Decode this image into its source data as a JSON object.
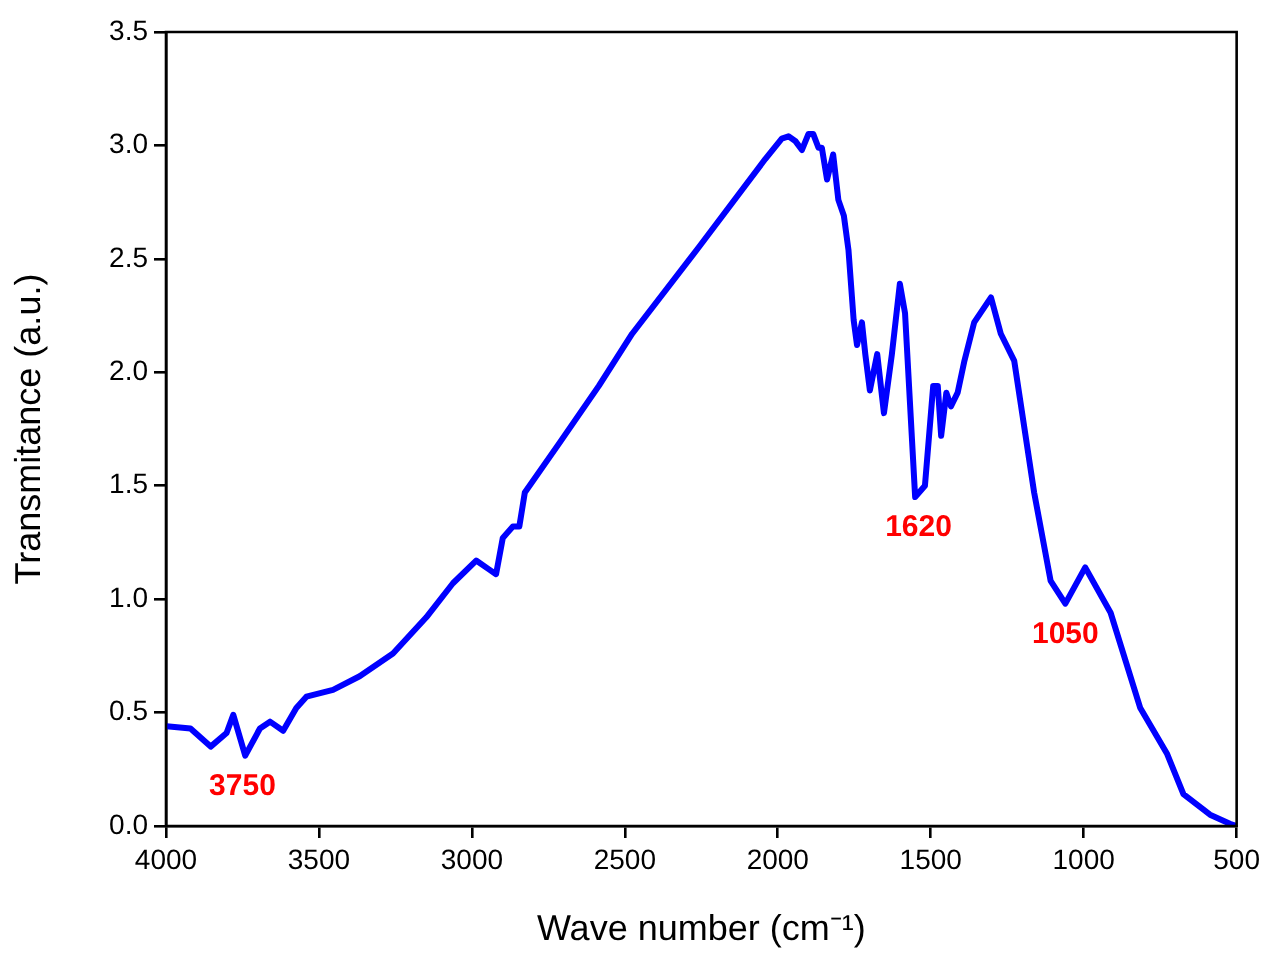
{
  "chart_data": {
    "type": "line",
    "xlabel": "Wave number (cm⁻¹)",
    "ylabel": "Transmitance (a.u.)",
    "xlim": [
      4000,
      500
    ],
    "xticks": [
      4000,
      3500,
      3000,
      2500,
      2000,
      1500,
      1000,
      500
    ],
    "ylim": [
      0,
      3.5
    ],
    "yticks": [
      {
        "value": 0,
        "label": "0.0"
      },
      0.5,
      {
        "value": 1,
        "label": "1.0"
      },
      1.5,
      {
        "value": 2,
        "label": "2.0"
      },
      2.5,
      {
        "value": 3,
        "label": "3.0"
      },
      3.5
    ],
    "grid": false,
    "legend": false,
    "marker": "none",
    "line_style": "solid",
    "series": [
      {
        "color": "#0000ff",
        "x": [
          3998,
          3920,
          3854,
          3802,
          3780,
          3741,
          3693,
          3660,
          3617,
          3574,
          3541,
          3454,
          3367,
          3258,
          3149,
          3062,
          2986,
          2943,
          2921,
          2899,
          2866,
          2845,
          2827,
          2713,
          2585,
          2476,
          2259,
          2041,
          1987,
          1965,
          1943,
          1921,
          1900,
          1884,
          1867,
          1856,
          1839,
          1819,
          1802,
          1784,
          1769,
          1752,
          1741,
          1725,
          1714,
          1699,
          1675,
          1653,
          1627,
          1601,
          1584,
          1551,
          1519,
          1492,
          1477,
          1466,
          1449,
          1434,
          1412,
          1390,
          1358,
          1303,
          1271,
          1227,
          1162,
          1108,
          1060,
          995,
          912,
          815,
          728,
          674,
          587,
          522,
          500
        ],
        "values": [
          0.44,
          0.43,
          0.35,
          0.41,
          0.49,
          0.31,
          0.43,
          0.46,
          0.42,
          0.52,
          0.57,
          0.6,
          0.66,
          0.76,
          0.92,
          1.07,
          1.17,
          1.13,
          1.11,
          1.27,
          1.32,
          1.32,
          1.47,
          1.69,
          1.94,
          2.17,
          2.55,
          2.94,
          3.03,
          3.04,
          3.02,
          2.98,
          3.05,
          3.05,
          2.99,
          2.99,
          2.85,
          2.96,
          2.76,
          2.69,
          2.54,
          2.23,
          2.12,
          2.22,
          2.08,
          1.92,
          2.08,
          1.82,
          2.08,
          2.39,
          2.26,
          1.45,
          1.5,
          1.94,
          1.94,
          1.72,
          1.91,
          1.85,
          1.91,
          2.05,
          2.22,
          2.33,
          2.17,
          2.05,
          1.47,
          1.08,
          0.98,
          1.14,
          0.94,
          0.52,
          0.32,
          0.14,
          0.05,
          0.01,
          0
        ]
      }
    ],
    "annotations": [
      {
        "text": "3750",
        "x": 3750,
        "y": 0.31
      },
      {
        "text": "1620",
        "x": 1540,
        "y": 1.45
      },
      {
        "text": "1050",
        "x": 1060,
        "y": 0.98
      }
    ]
  }
}
